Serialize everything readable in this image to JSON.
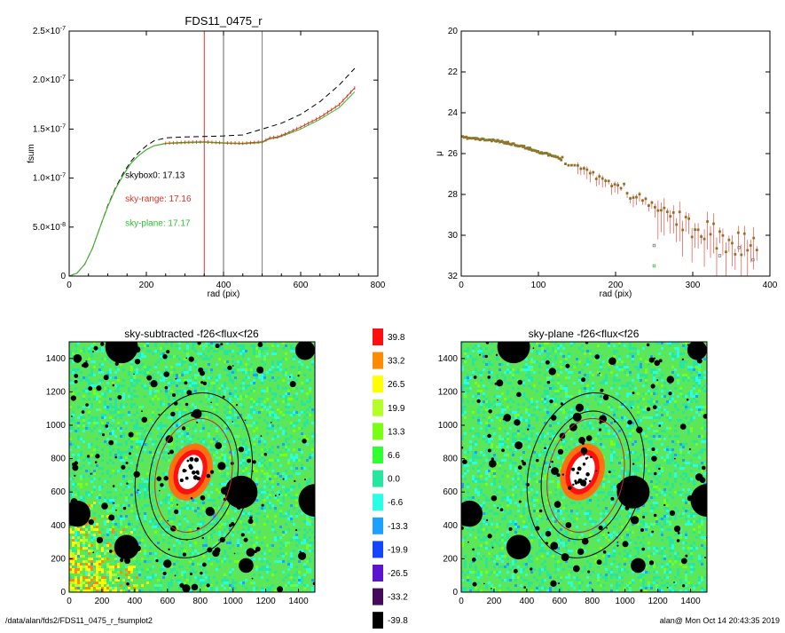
{
  "footer": {
    "path": "/data/alan/fds2/FDS11_0475_r_fsumplot2",
    "user_time": "alan@  Mon Oct 14 20:43:35 2019"
  },
  "chart_data": [
    {
      "type": "line",
      "title": "FDS11_0475_r",
      "xlabel": "rad (pix)",
      "ylabel": "fsum",
      "xlim": [
        0,
        800
      ],
      "ylim": [
        0,
        2.5e-07
      ],
      "x_ticks": [
        0,
        200,
        400,
        600,
        800
      ],
      "y_ticks": [
        0,
        5e-08,
        1e-07,
        1.5e-07,
        2e-07,
        2.5e-07
      ],
      "y_tick_labels": [
        {
          "mantissa": "0",
          "exp": ""
        },
        {
          "mantissa": "5.0×10",
          "exp": "-8"
        },
        {
          "mantissa": "1.0×10",
          "exp": "-7"
        },
        {
          "mantissa": "1.5×10",
          "exp": "-7"
        },
        {
          "mantissa": "2.0×10",
          "exp": "-7"
        },
        {
          "mantissa": "2.5×10",
          "exp": "-7"
        }
      ],
      "vlines": [
        {
          "x": 350,
          "color": "#d42020"
        },
        {
          "x": 400,
          "color": "#555555"
        },
        {
          "x": 500,
          "color": "#777777"
        }
      ],
      "annotations": [
        {
          "text": "skybox0: 17.13",
          "color": "#000000",
          "x": 145,
          "y": 1e-07
        },
        {
          "text": "sky-range: 17.16",
          "color": "#e03020",
          "x": 145,
          "y": 7.6e-08
        },
        {
          "text": "sky-plane: 17.17",
          "color": "#30c030",
          "x": 145,
          "y": 5.1e-08
        }
      ],
      "series": [
        {
          "color": "#000000",
          "dash": true,
          "x": [
            0,
            20,
            40,
            60,
            80,
            100,
            120,
            140,
            160,
            180,
            200,
            220,
            250,
            300,
            350,
            400,
            450,
            500,
            550,
            600,
            650,
            700,
            740
          ],
          "y": [
            0,
            3e-09,
            1.2e-08,
            2.8e-08,
            5e-08,
            7.2e-08,
            9e-08,
            1.05e-07,
            1.17e-07,
            1.26e-07,
            1.33e-07,
            1.38e-07,
            1.41e-07,
            1.42e-07,
            1.425e-07,
            1.43e-07,
            1.44e-07,
            1.5e-07,
            1.56e-07,
            1.65e-07,
            1.78e-07,
            1.95e-07,
            2.12e-07
          ]
        },
        {
          "color": "#e03020",
          "dash": false,
          "x": [
            0,
            20,
            40,
            60,
            80,
            100,
            120,
            140,
            160,
            180,
            200,
            220,
            250,
            300,
            350,
            400,
            450,
            500,
            520,
            540,
            560,
            600,
            650,
            700,
            740
          ],
          "y": [
            0,
            3e-09,
            1.2e-08,
            2.8e-08,
            5e-08,
            7.1e-08,
            8.9e-08,
            1.03e-07,
            1.15e-07,
            1.23e-07,
            1.29e-07,
            1.33e-07,
            1.355e-07,
            1.365e-07,
            1.37e-07,
            1.36e-07,
            1.355e-07,
            1.37e-07,
            1.41e-07,
            1.42e-07,
            1.45e-07,
            1.52e-07,
            1.62e-07,
            1.75e-07,
            1.92e-07
          ]
        },
        {
          "color": "#30c030",
          "dash": false,
          "x": [
            0,
            20,
            40,
            60,
            80,
            100,
            120,
            140,
            160,
            180,
            200,
            220,
            250,
            300,
            350,
            400,
            450,
            500,
            520,
            540,
            560,
            600,
            650,
            700,
            740
          ],
          "y": [
            0,
            3e-09,
            1.2e-08,
            2.8e-08,
            5e-08,
            7.1e-08,
            8.9e-08,
            1.03e-07,
            1.15e-07,
            1.23e-07,
            1.29e-07,
            1.33e-07,
            1.352e-07,
            1.36e-07,
            1.365e-07,
            1.355e-07,
            1.35e-07,
            1.362e-07,
            1.4e-07,
            1.41e-07,
            1.44e-07,
            1.5e-07,
            1.6e-07,
            1.72e-07,
            1.88e-07
          ]
        }
      ]
    },
    {
      "type": "scatter",
      "title": "",
      "xlabel": "rad (pix)",
      "ylabel": "μ",
      "xlim": [
        0,
        400
      ],
      "ylim": [
        32,
        20
      ],
      "y_inverted": true,
      "x_ticks": [
        0,
        100,
        200,
        300,
        400
      ],
      "y_ticks": [
        20,
        22,
        24,
        26,
        28,
        30,
        32
      ],
      "profile": {
        "r": [
          0,
          25,
          50,
          75,
          100,
          125,
          150,
          175,
          200,
          225,
          250,
          275,
          300,
          325,
          350,
          375,
          400
        ],
        "mu": [
          25.2,
          25.3,
          25.4,
          25.6,
          25.9,
          26.2,
          26.6,
          27.1,
          27.6,
          28.1,
          28.6,
          29.1,
          29.6,
          30.0,
          30.3,
          30.5,
          30.6
        ]
      },
      "outliers": [
        {
          "x": 250,
          "y": 31.5,
          "color": "#30c030"
        },
        {
          "x": 335,
          "y": 31.0,
          "color": "#777777"
        },
        {
          "x": 360,
          "y": 30.6,
          "color": "#777777"
        },
        {
          "x": 378,
          "y": 31.2,
          "color": "#777777"
        },
        {
          "x": 250,
          "y": 30.5,
          "color": "#777777"
        }
      ]
    },
    {
      "type": "heatmap",
      "title": "sky-subtracted -f26<flux<f26",
      "xlim": [
        0,
        1500
      ],
      "ylim": [
        0,
        1500
      ],
      "x_ticks": [
        0,
        200,
        400,
        600,
        800,
        1000,
        1200,
        1400
      ],
      "y_ticks": [
        0,
        200,
        400,
        600,
        800,
        1000,
        1200,
        1400
      ],
      "ellipses": [
        {
          "cx": 760,
          "cy": 700,
          "rx": 350,
          "ry": 500,
          "rot": 12,
          "color": "#000000"
        },
        {
          "cx": 760,
          "cy": 700,
          "rx": 265,
          "ry": 390,
          "rot": 12,
          "color": "#000000"
        },
        {
          "cx": 760,
          "cy": 700,
          "rx": 230,
          "ry": 345,
          "rot": 12,
          "color": "#d42020"
        }
      ],
      "big_masks": [
        {
          "x": 320,
          "y": 1470,
          "r": 100
        },
        {
          "x": 1440,
          "y": 1450,
          "r": 60
        },
        {
          "x": 1050,
          "y": 600,
          "r": 100
        },
        {
          "x": 1500,
          "y": 550,
          "r": 100
        },
        {
          "x": 50,
          "y": 470,
          "r": 80
        },
        {
          "x": 350,
          "y": 270,
          "r": 75
        },
        {
          "x": 1080,
          "y": 160,
          "r": 45
        }
      ],
      "background": "warm-corner"
    },
    {
      "type": "heatmap",
      "title": "sky-plane -f26<flux<f26",
      "xlim": [
        0,
        1500
      ],
      "ylim": [
        0,
        1500
      ],
      "x_ticks": [
        0,
        200,
        400,
        600,
        800,
        1000,
        1200,
        1400
      ],
      "y_ticks": [
        0,
        200,
        400,
        600,
        800,
        1000,
        1200,
        1400
      ],
      "ellipses": [
        {
          "cx": 760,
          "cy": 700,
          "rx": 350,
          "ry": 500,
          "rot": 12,
          "color": "#000000"
        },
        {
          "cx": 760,
          "cy": 700,
          "rx": 265,
          "ry": 390,
          "rot": 12,
          "color": "#000000"
        },
        {
          "cx": 760,
          "cy": 700,
          "rx": 230,
          "ry": 345,
          "rot": 12,
          "color": "#d42020"
        }
      ],
      "big_masks": [
        {
          "x": 320,
          "y": 1470,
          "r": 100
        },
        {
          "x": 1440,
          "y": 1450,
          "r": 60
        },
        {
          "x": 1050,
          "y": 600,
          "r": 100
        },
        {
          "x": 1500,
          "y": 550,
          "r": 100
        },
        {
          "x": 50,
          "y": 470,
          "r": 80
        },
        {
          "x": 350,
          "y": 270,
          "r": 75
        },
        {
          "x": 1080,
          "y": 160,
          "r": 45
        }
      ],
      "background": "uniform"
    }
  ],
  "colorbar": {
    "labels": [
      "39.8",
      "33.2",
      "26.5",
      "19.9",
      "13.3",
      "6.6",
      "0.0",
      "-6.6",
      "-13.3",
      "-19.9",
      "-26.5",
      "-33.2",
      "-39.8"
    ],
    "colors": [
      "#ff1010",
      "#ff8c00",
      "#ffff00",
      "#b4ff28",
      "#78ff14",
      "#32ff32",
      "#28e6a0",
      "#28ffe6",
      "#1ea0ff",
      "#1446ff",
      "#5a14d2",
      "#460a5a",
      "#000000"
    ]
  }
}
